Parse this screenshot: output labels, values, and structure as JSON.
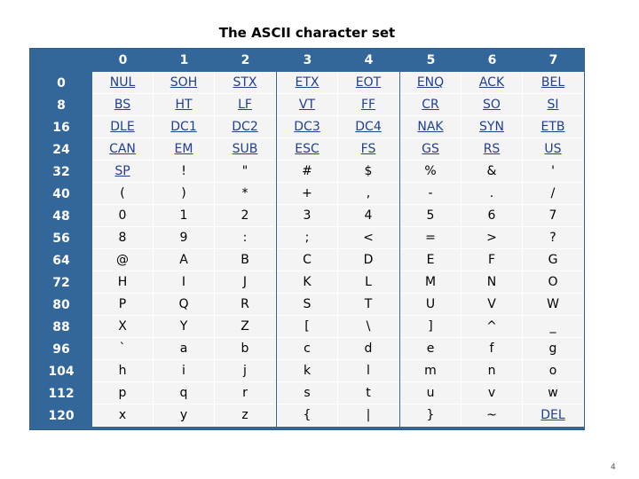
{
  "title": "The ASCII character set",
  "column_headers": [
    "0",
    "1",
    "2",
    "3",
    "4",
    "5",
    "6",
    "7"
  ],
  "rows": [
    {
      "label": "0",
      "cells": [
        "NUL",
        "SOH",
        "STX",
        "ETX",
        "EOT",
        "ENQ",
        "ACK",
        "BEL"
      ],
      "links": [
        true,
        true,
        true,
        true,
        true,
        true,
        true,
        true
      ]
    },
    {
      "label": "8",
      "cells": [
        "BS",
        "HT",
        "LF",
        "VT",
        "FF",
        "CR",
        "SO",
        "SI"
      ],
      "links": [
        true,
        true,
        true,
        true,
        true,
        true,
        true,
        true
      ]
    },
    {
      "label": "16",
      "cells": [
        "DLE",
        "DC1",
        "DC2",
        "DC3",
        "DC4",
        "NAK",
        "SYN",
        "ETB"
      ],
      "links": [
        true,
        true,
        true,
        true,
        true,
        true,
        true,
        true
      ]
    },
    {
      "label": "24",
      "cells": [
        "CAN",
        "EM",
        "SUB",
        "ESC",
        "FS",
        "GS",
        "RS",
        "US"
      ],
      "links": [
        true,
        true,
        true,
        true,
        true,
        true,
        true,
        true
      ]
    },
    {
      "label": "32",
      "cells": [
        "SP",
        "!",
        "\"",
        "#",
        "$",
        "%",
        "&",
        "'"
      ],
      "links": [
        true,
        false,
        false,
        false,
        false,
        false,
        false,
        false
      ]
    },
    {
      "label": "40",
      "cells": [
        "(",
        ")",
        "*",
        "+",
        ",",
        "-",
        ".",
        "/"
      ],
      "links": [
        false,
        false,
        false,
        false,
        false,
        false,
        false,
        false
      ]
    },
    {
      "label": "48",
      "cells": [
        "0",
        "1",
        "2",
        "3",
        "4",
        "5",
        "6",
        "7"
      ],
      "links": [
        false,
        false,
        false,
        false,
        false,
        false,
        false,
        false
      ]
    },
    {
      "label": "56",
      "cells": [
        "8",
        "9",
        ":",
        ";",
        "<",
        "=",
        ">",
        "?"
      ],
      "links": [
        false,
        false,
        false,
        false,
        false,
        false,
        false,
        false
      ]
    },
    {
      "label": "64",
      "cells": [
        "@",
        "A",
        "B",
        "C",
        "D",
        "E",
        "F",
        "G"
      ],
      "links": [
        false,
        false,
        false,
        false,
        false,
        false,
        false,
        false
      ]
    },
    {
      "label": "72",
      "cells": [
        "H",
        "I",
        "J",
        "K",
        "L",
        "M",
        "N",
        "O"
      ],
      "links": [
        false,
        false,
        false,
        false,
        false,
        false,
        false,
        false
      ]
    },
    {
      "label": "80",
      "cells": [
        "P",
        "Q",
        "R",
        "S",
        "T",
        "U",
        "V",
        "W"
      ],
      "links": [
        false,
        false,
        false,
        false,
        false,
        false,
        false,
        false
      ]
    },
    {
      "label": "88",
      "cells": [
        "X",
        "Y",
        "Z",
        "[",
        "\\",
        "]",
        "^",
        "_"
      ],
      "links": [
        false,
        false,
        false,
        false,
        false,
        false,
        false,
        false
      ]
    },
    {
      "label": "96",
      "cells": [
        "`",
        "a",
        "b",
        "c",
        "d",
        "e",
        "f",
        "g"
      ],
      "links": [
        false,
        false,
        false,
        false,
        false,
        false,
        false,
        false
      ]
    },
    {
      "label": "104",
      "cells": [
        "h",
        "i",
        "j",
        "k",
        "l",
        "m",
        "n",
        "o"
      ],
      "links": [
        false,
        false,
        false,
        false,
        false,
        false,
        false,
        false
      ]
    },
    {
      "label": "112",
      "cells": [
        "p",
        "q",
        "r",
        "s",
        "t",
        "u",
        "v",
        "w"
      ],
      "links": [
        false,
        false,
        false,
        false,
        false,
        false,
        false,
        false
      ]
    },
    {
      "label": "120",
      "cells": [
        "x",
        "y",
        "z",
        "{",
        "|",
        "}",
        "~",
        "DEL"
      ],
      "links": [
        false,
        false,
        false,
        false,
        false,
        false,
        false,
        true
      ]
    }
  ],
  "page_number": "4",
  "colors": {
    "header_bg": "#336699",
    "cell_bg": "#f4f4f4",
    "link_text": "#1f3f8f"
  }
}
